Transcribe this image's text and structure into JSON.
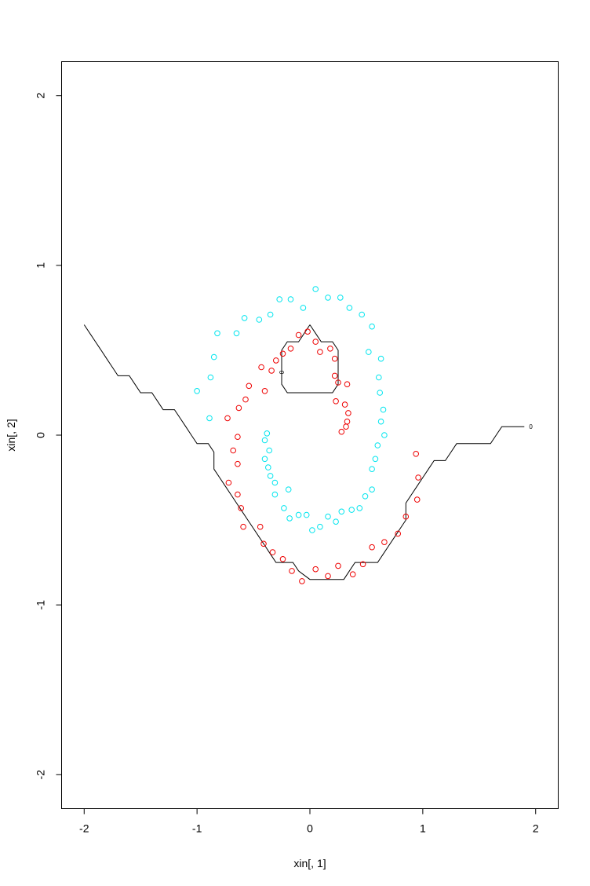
{
  "chart_data": {
    "type": "scatter",
    "title": "",
    "xlabel": "xin[, 1]",
    "ylabel": "xin[, 2]",
    "xlim": [
      -2.2,
      2.2
    ],
    "ylim": [
      -2.2,
      2.2
    ],
    "x_ticks": [
      -2,
      -1,
      0,
      1,
      2
    ],
    "x_tick_labels": [
      "-2",
      "-1",
      "0",
      "1",
      "2"
    ],
    "y_ticks": [
      -2,
      -1,
      0,
      1,
      2
    ],
    "y_tick_labels": [
      "-2",
      "-1",
      "0",
      "1",
      "2"
    ],
    "grid": false,
    "legend": "none",
    "series": [
      {
        "color": "#00e5ee",
        "points": [
          [
            0.05,
            0.86
          ],
          [
            0.27,
            0.81
          ],
          [
            0.16,
            0.81
          ],
          [
            -0.27,
            0.8
          ],
          [
            -0.17,
            0.8
          ],
          [
            0.35,
            0.75
          ],
          [
            -0.06,
            0.75
          ],
          [
            0.46,
            0.71
          ],
          [
            -0.35,
            0.71
          ],
          [
            -0.58,
            0.69
          ],
          [
            -0.45,
            0.68
          ],
          [
            0.55,
            0.64
          ],
          [
            -0.82,
            0.6
          ],
          [
            -0.65,
            0.6
          ],
          [
            0.52,
            0.49
          ],
          [
            -0.85,
            0.46
          ],
          [
            0.63,
            0.45
          ],
          [
            -0.88,
            0.34
          ],
          [
            0.61,
            0.34
          ],
          [
            0.62,
            0.25
          ],
          [
            -1.0,
            0.26
          ],
          [
            0.65,
            0.15
          ],
          [
            0.63,
            0.08
          ],
          [
            -0.89,
            0.1
          ],
          [
            0.66,
            0.0
          ],
          [
            -0.38,
            0.01
          ],
          [
            0.6,
            -0.06
          ],
          [
            -0.4,
            -0.03
          ],
          [
            -0.36,
            -0.09
          ],
          [
            0.58,
            -0.14
          ],
          [
            -0.4,
            -0.14
          ],
          [
            -0.37,
            -0.19
          ],
          [
            0.55,
            -0.2
          ],
          [
            -0.35,
            -0.24
          ],
          [
            -0.31,
            -0.28
          ],
          [
            0.55,
            -0.32
          ],
          [
            -0.19,
            -0.32
          ],
          [
            -0.31,
            -0.35
          ],
          [
            0.49,
            -0.36
          ],
          [
            -0.23,
            -0.43
          ],
          [
            0.44,
            -0.43
          ],
          [
            0.37,
            -0.44
          ],
          [
            0.28,
            -0.45
          ],
          [
            -0.1,
            -0.47
          ],
          [
            -0.03,
            -0.47
          ],
          [
            0.16,
            -0.48
          ],
          [
            -0.18,
            -0.49
          ],
          [
            0.23,
            -0.51
          ],
          [
            0.09,
            -0.54
          ],
          [
            0.02,
            -0.56
          ]
        ]
      },
      {
        "color": "#ee0000",
        "points": [
          [
            -0.02,
            0.61
          ],
          [
            -0.1,
            0.59
          ],
          [
            0.05,
            0.55
          ],
          [
            -0.17,
            0.51
          ],
          [
            0.18,
            0.51
          ],
          [
            0.09,
            0.49
          ],
          [
            -0.24,
            0.48
          ],
          [
            0.22,
            0.45
          ],
          [
            -0.3,
            0.44
          ],
          [
            -0.43,
            0.4
          ],
          [
            -0.34,
            0.38
          ],
          [
            0.22,
            0.35
          ],
          [
            0.25,
            0.31
          ],
          [
            0.33,
            0.3
          ],
          [
            -0.54,
            0.29
          ],
          [
            -0.4,
            0.26
          ],
          [
            -0.57,
            0.21
          ],
          [
            0.23,
            0.2
          ],
          [
            0.31,
            0.18
          ],
          [
            0.34,
            0.13
          ],
          [
            -0.63,
            0.16
          ],
          [
            -0.73,
            0.1
          ],
          [
            0.33,
            0.08
          ],
          [
            0.32,
            0.05
          ],
          [
            0.28,
            0.02
          ],
          [
            -0.64,
            -0.01
          ],
          [
            -0.68,
            -0.09
          ],
          [
            0.94,
            -0.11
          ],
          [
            -0.64,
            -0.17
          ],
          [
            0.96,
            -0.25
          ],
          [
            -0.72,
            -0.28
          ],
          [
            -0.64,
            -0.35
          ],
          [
            0.95,
            -0.38
          ],
          [
            -0.61,
            -0.43
          ],
          [
            0.85,
            -0.48
          ],
          [
            -0.59,
            -0.54
          ],
          [
            -0.44,
            -0.54
          ],
          [
            0.78,
            -0.58
          ],
          [
            0.66,
            -0.63
          ],
          [
            -0.41,
            -0.64
          ],
          [
            0.55,
            -0.66
          ],
          [
            -0.33,
            -0.69
          ],
          [
            -0.24,
            -0.73
          ],
          [
            0.47,
            -0.76
          ],
          [
            0.25,
            -0.77
          ],
          [
            0.05,
            -0.79
          ],
          [
            -0.16,
            -0.8
          ],
          [
            0.38,
            -0.82
          ],
          [
            0.16,
            -0.83
          ],
          [
            -0.07,
            -0.86
          ]
        ]
      }
    ],
    "contours": [
      {
        "label": "0",
        "color": "#000000",
        "points": [
          [
            -2.0,
            0.65
          ],
          [
            -1.95,
            0.6
          ],
          [
            -1.9,
            0.55
          ],
          [
            -1.85,
            0.5
          ],
          [
            -1.8,
            0.45
          ],
          [
            -1.75,
            0.4
          ],
          [
            -1.7,
            0.35
          ],
          [
            -1.6,
            0.35
          ],
          [
            -1.55,
            0.3
          ],
          [
            -1.5,
            0.25
          ],
          [
            -1.4,
            0.25
          ],
          [
            -1.35,
            0.2
          ],
          [
            -1.3,
            0.15
          ],
          [
            -1.2,
            0.15
          ],
          [
            -1.15,
            0.1
          ],
          [
            -1.1,
            0.05
          ],
          [
            -1.05,
            0.0
          ],
          [
            -1.0,
            -0.05
          ],
          [
            -0.9,
            -0.05
          ],
          [
            -0.85,
            -0.1
          ],
          [
            -0.85,
            -0.2
          ],
          [
            -0.8,
            -0.25
          ],
          [
            -0.75,
            -0.3
          ],
          [
            -0.7,
            -0.35
          ],
          [
            -0.65,
            -0.4
          ],
          [
            -0.6,
            -0.45
          ],
          [
            -0.55,
            -0.5
          ],
          [
            -0.5,
            -0.55
          ],
          [
            -0.45,
            -0.6
          ],
          [
            -0.4,
            -0.65
          ],
          [
            -0.35,
            -0.7
          ],
          [
            -0.3,
            -0.75
          ],
          [
            -0.2,
            -0.75
          ],
          [
            -0.15,
            -0.75
          ],
          [
            -0.1,
            -0.8
          ],
          [
            0.0,
            -0.85
          ],
          [
            0.1,
            -0.85
          ],
          [
            0.2,
            -0.85
          ],
          [
            0.3,
            -0.85
          ],
          [
            0.4,
            -0.75
          ],
          [
            0.5,
            -0.75
          ],
          [
            0.6,
            -0.75
          ],
          [
            0.65,
            -0.7
          ],
          [
            0.7,
            -0.65
          ],
          [
            0.75,
            -0.6
          ],
          [
            0.8,
            -0.55
          ],
          [
            0.85,
            -0.5
          ],
          [
            0.85,
            -0.4
          ],
          [
            0.9,
            -0.35
          ],
          [
            0.95,
            -0.3
          ],
          [
            1.0,
            -0.25
          ],
          [
            1.05,
            -0.2
          ],
          [
            1.1,
            -0.15
          ],
          [
            1.2,
            -0.15
          ],
          [
            1.25,
            -0.1
          ],
          [
            1.3,
            -0.05
          ],
          [
            1.4,
            -0.05
          ],
          [
            1.5,
            -0.05
          ],
          [
            1.6,
            -0.05
          ],
          [
            1.65,
            0.0
          ],
          [
            1.7,
            0.05
          ],
          [
            1.8,
            0.05
          ],
          [
            1.9,
            0.05
          ]
        ]
      },
      {
        "label": "0",
        "color": "#000000",
        "points": [
          [
            0.0,
            0.65
          ],
          [
            -0.05,
            0.6
          ],
          [
            -0.1,
            0.55
          ],
          [
            -0.2,
            0.55
          ],
          [
            -0.25,
            0.5
          ],
          [
            -0.25,
            0.4
          ],
          [
            -0.25,
            0.3
          ],
          [
            -0.2,
            0.25
          ],
          [
            -0.1,
            0.25
          ],
          [
            0.0,
            0.25
          ],
          [
            0.1,
            0.25
          ],
          [
            0.2,
            0.25
          ],
          [
            0.25,
            0.3
          ],
          [
            0.25,
            0.4
          ],
          [
            0.25,
            0.5
          ],
          [
            0.2,
            0.55
          ],
          [
            0.1,
            0.55
          ],
          [
            0.05,
            0.6
          ],
          [
            0.0,
            0.65
          ]
        ]
      }
    ]
  }
}
